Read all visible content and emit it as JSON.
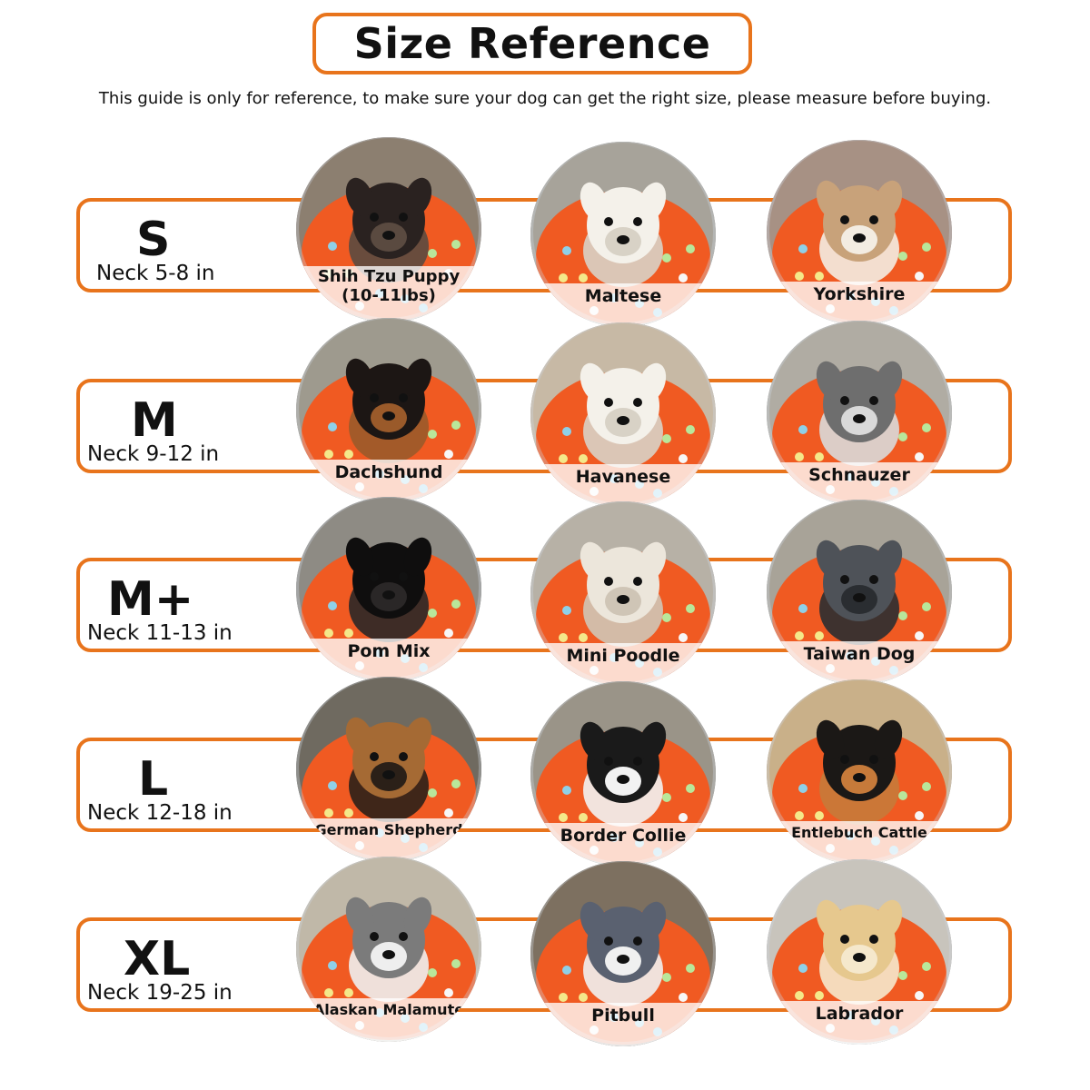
{
  "title": "Size Reference",
  "subtitle": "This guide is only for reference, to make sure your dog can get the right size, please measure before buying.",
  "colors": {
    "accent": "#e8741c",
    "collar_orange": "#f05a22",
    "text": "#111111"
  },
  "sizes": [
    {
      "code": "S",
      "neck": "Neck 5-8 in",
      "dogs": [
        {
          "label": "Shih Tzu Puppy (10-11lbs)",
          "label_lines": [
            "Shih Tzu Puppy",
            "(10-11lbs)"
          ],
          "coat": "dark"
        },
        {
          "label": "Maltese",
          "coat": "white"
        },
        {
          "label": "Yorkshire",
          "coat": "tan-white"
        }
      ]
    },
    {
      "code": "M",
      "neck": "Neck 9-12 in",
      "dogs": [
        {
          "label": "Dachshund",
          "coat": "black-tan"
        },
        {
          "label": "Havanese",
          "coat": "white"
        },
        {
          "label": "Schnauzer",
          "coat": "grey"
        }
      ]
    },
    {
      "code": "M+",
      "neck": "Neck 11-13 in",
      "dogs": [
        {
          "label": "Pom Mix",
          "coat": "black"
        },
        {
          "label": "Mini Poodle",
          "coat": "cream"
        },
        {
          "label": "Taiwan Dog",
          "coat": "grey-dark"
        }
      ]
    },
    {
      "code": "L",
      "neck": "Neck 12-18 in",
      "dogs": [
        {
          "label": "German Shepherd",
          "coat": "tan-black"
        },
        {
          "label": "Border Collie",
          "coat": "black-white"
        },
        {
          "label": "Entlebuch Cattle",
          "coat": "tricolor"
        }
      ]
    },
    {
      "code": "XL",
      "neck": "Neck 19-25 in",
      "dogs": [
        {
          "label": "Alaskan Malamute",
          "coat": "grey-white"
        },
        {
          "label": "Pitbull",
          "coat": "blue-white"
        },
        {
          "label": "Labrador",
          "coat": "yellow"
        }
      ]
    }
  ]
}
